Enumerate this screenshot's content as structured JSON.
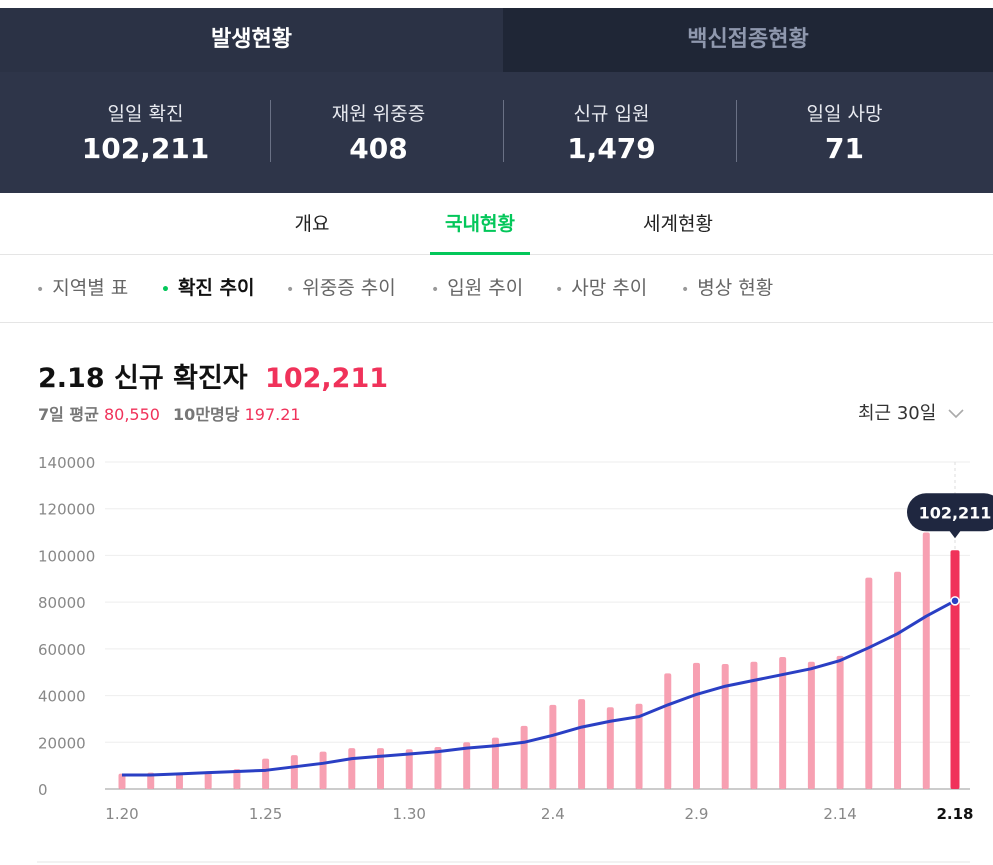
{
  "tabs": [
    "발생현황",
    "백신접종현황"
  ],
  "stats": [
    {
      "label": "일일 확진",
      "value": "102,211"
    },
    {
      "label": "재원 위중증",
      "value": "408"
    },
    {
      "label": "신규 입원",
      "value": "1,479"
    },
    {
      "label": "일일 사망",
      "value": "71"
    }
  ],
  "nav": [
    "개요",
    "국내현황",
    "세계현황"
  ],
  "subnav": [
    "지역별 표",
    "확진 추이",
    "위중증 추이",
    "입원 추이",
    "사망 추이",
    "병상 현황"
  ],
  "summary": {
    "date": "2.18",
    "title": "신규 확진자",
    "count": "102,211",
    "avg_label": "7일 평균",
    "avg_value": "80,550",
    "per_label": "10만명당",
    "per_value": "197.21",
    "range": "최근 30일"
  },
  "chart_data": {
    "type": "bar-line",
    "categories": [
      "1.20",
      null,
      null,
      null,
      null,
      "1.25",
      null,
      null,
      null,
      null,
      "1.30",
      null,
      null,
      null,
      null,
      "2.4",
      null,
      null,
      null,
      null,
      "2.9",
      null,
      null,
      null,
      null,
      "2.14",
      null,
      null,
      null,
      "2.18"
    ],
    "series": [
      {
        "type": "bar",
        "color": "#f7a0b2",
        "highlight_color": "#f0325a",
        "values": [
          6600,
          7000,
          7000,
          7600,
          8500,
          13000,
          14500,
          16000,
          17500,
          17500,
          17000,
          18000,
          20000,
          22000,
          27000,
          36000,
          38500,
          35000,
          36500,
          49500,
          54000,
          53500,
          54500,
          56500,
          54500,
          57000,
          90500,
          93000,
          109800,
          102211
        ],
        "value_labels": [
          null,
          null,
          null,
          null,
          null,
          null,
          null,
          null,
          null,
          null,
          null,
          null,
          null,
          null,
          null,
          null,
          null,
          null,
          null,
          null,
          null,
          null,
          null,
          null,
          null,
          null,
          null,
          null,
          null,
          "102,211"
        ]
      },
      {
        "type": "line",
        "color": "#2a3fc4",
        "values": [
          6000,
          6000,
          6500,
          7000,
          7500,
          8000,
          9500,
          11000,
          13000,
          14000,
          15000,
          16000,
          17500,
          18500,
          20000,
          23000,
          26500,
          29000,
          31000,
          36000,
          40500,
          44000,
          46500,
          49000,
          51500,
          55000,
          60500,
          66500,
          74000,
          80550
        ]
      }
    ],
    "ylim": [
      0,
      140000
    ],
    "yticks": [
      0,
      20000,
      40000,
      60000,
      80000,
      100000,
      120000,
      140000
    ],
    "grid": true
  }
}
